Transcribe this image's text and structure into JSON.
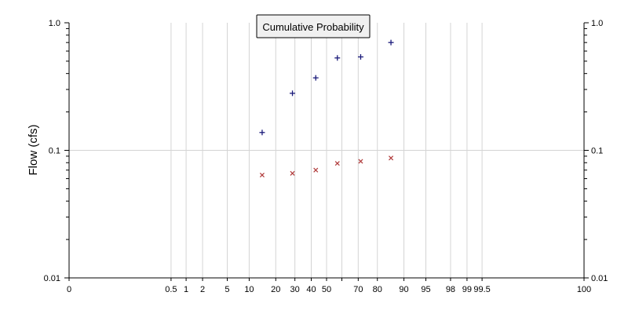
{
  "chart_data": {
    "type": "scatter",
    "title": "Cumulative Probability",
    "xlabel": "",
    "ylabel": "Flow (cfs)",
    "x_scale": "normal-probability",
    "y_scale": "log",
    "xlim": [
      0,
      100
    ],
    "ylim": [
      0.01,
      1.0
    ],
    "x_ticks": [
      {
        "value": 0,
        "label": "0"
      },
      {
        "value": 0.5,
        "label": "0.5"
      },
      {
        "value": 1,
        "label": "1"
      },
      {
        "value": 2,
        "label": "2"
      },
      {
        "value": 5,
        "label": "5"
      },
      {
        "value": 10,
        "label": "10"
      },
      {
        "value": 20,
        "label": "20"
      },
      {
        "value": 30,
        "label": "30"
      },
      {
        "value": 40,
        "label": "40"
      },
      {
        "value": 50,
        "label": "50"
      },
      {
        "value": 60,
        "label": ""
      },
      {
        "value": 70,
        "label": "70"
      },
      {
        "value": 80,
        "label": "80"
      },
      {
        "value": 90,
        "label": "90"
      },
      {
        "value": 95,
        "label": "95"
      },
      {
        "value": 98,
        "label": "98"
      },
      {
        "value": 99,
        "label": "99"
      },
      {
        "value": 99.5,
        "label": "99.5"
      },
      {
        "value": 100,
        "label": "100"
      }
    ],
    "y_ticks": [
      {
        "value": 0.01,
        "label": "0.01"
      },
      {
        "value": 0.1,
        "label": "0.1"
      },
      {
        "value": 1.0,
        "label": "1.0"
      }
    ],
    "grid": true,
    "series": [
      {
        "marker": "plus",
        "color": "#1a1a7a",
        "points": [
          {
            "x": 14.3,
            "y": 0.138
          },
          {
            "x": 28.6,
            "y": 0.28
          },
          {
            "x": 42.9,
            "y": 0.37
          },
          {
            "x": 57.1,
            "y": 0.53
          },
          {
            "x": 71.4,
            "y": 0.54
          },
          {
            "x": 85.7,
            "y": 0.7
          }
        ]
      },
      {
        "marker": "x",
        "color": "#b03a3a",
        "points": [
          {
            "x": 14.3,
            "y": 0.064
          },
          {
            "x": 28.6,
            "y": 0.066
          },
          {
            "x": 42.9,
            "y": 0.07
          },
          {
            "x": 57.1,
            "y": 0.079
          },
          {
            "x": 71.4,
            "y": 0.082
          },
          {
            "x": 85.7,
            "y": 0.087
          }
        ]
      }
    ]
  },
  "colors": {
    "grid": "#d4d4d4",
    "axis": "#000000",
    "title_box_fill": "#f0f0f0",
    "title_box_border": "#000000"
  }
}
